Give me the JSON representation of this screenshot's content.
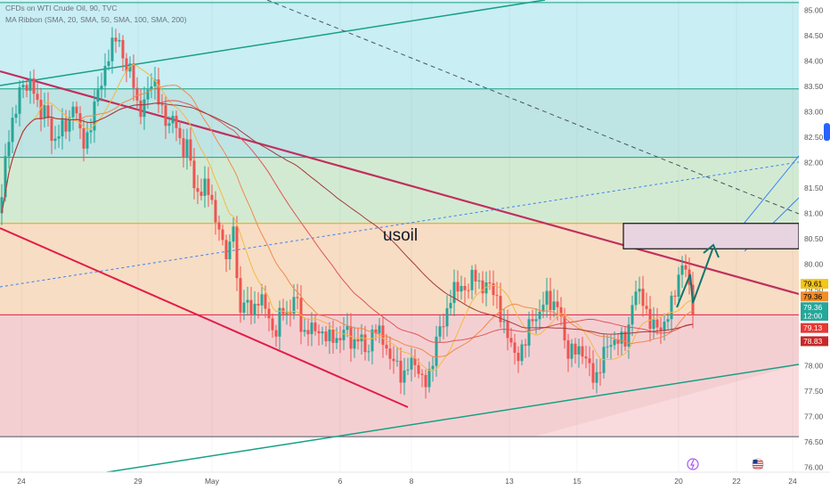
{
  "legend": {
    "symbol_line": "CFDs on WTI Crude Oil, 90, TVC",
    "indicator_line": "MA Ribbon (SMA, 20, SMA, 50, SMA, 100, SMA, 200)"
  },
  "annotation_text": "usoil",
  "colors": {
    "band_cyan": "#c9eef3",
    "band_teal": "#bfe4e4",
    "band_green": "#d3ead2",
    "band_orange": "#f7ddc4",
    "band_red": "#f4cfd2",
    "channel_line": "#16a085",
    "downtrend_line": "#c0305f",
    "resistance_line": "#f59e0b",
    "support_line": "#e11d48",
    "arrow_color": "#0f766e",
    "candle_up": "#26a69a",
    "candle_down": "#ef5350"
  },
  "chart_data": {
    "type": "candlestick",
    "x_ticks": [
      "24",
      "29",
      "May",
      "6",
      "8",
      "13",
      "15",
      "20",
      "22",
      "24"
    ],
    "y_ticks": [
      "85.00",
      "84.50",
      "84.00",
      "83.50",
      "83.00",
      "82.50",
      "82.00",
      "81.50",
      "81.00",
      "80.50",
      "80.00",
      "79.50",
      "79.00",
      "78.50",
      "78.00",
      "77.50",
      "77.00",
      "76.50",
      "76.00"
    ],
    "ylim": [
      75.9,
      85.2
    ],
    "horizontal_levels": [
      85.15,
      83.45,
      82.1,
      80.8,
      79.0,
      76.6
    ],
    "price_badges": [
      {
        "label": "79.61",
        "value": 79.61,
        "bg": "#f5c518",
        "fg": "#000000"
      },
      {
        "label": "79.36",
        "value": 79.36,
        "bg": "#f28c28",
        "fg": "#000000"
      },
      {
        "label": "79.36",
        "value": 79.15,
        "bg": "#26a69a",
        "fg": "#ffffff"
      },
      {
        "label": "12:00",
        "value": 78.98,
        "bg": "#26a69a",
        "fg": "#ffffff"
      },
      {
        "label": "79.13",
        "value": 78.74,
        "bg": "#e53935",
        "fg": "#ffffff"
      },
      {
        "label": "78.83",
        "value": 78.48,
        "bg": "#c62828",
        "fg": "#ffffff"
      }
    ],
    "price_path": [
      [
        0,
        81.0
      ],
      [
        8,
        82.6
      ],
      [
        16,
        83.1
      ],
      [
        24,
        83.6
      ],
      [
        30,
        83.3
      ],
      [
        36,
        83.4
      ],
      [
        44,
        82.8
      ],
      [
        52,
        83.2
      ],
      [
        60,
        82.5
      ],
      [
        68,
        82.9
      ],
      [
        76,
        82.6
      ],
      [
        84,
        83.0
      ],
      [
        92,
        82.2
      ],
      [
        100,
        82.6
      ],
      [
        108,
        83.6
      ],
      [
        116,
        83.8
      ],
      [
        124,
        84.2
      ],
      [
        132,
        84.3
      ],
      [
        140,
        83.7
      ],
      [
        148,
        83.9
      ],
      [
        156,
        83.1
      ],
      [
        164,
        83.5
      ],
      [
        172,
        83.6
      ],
      [
        180,
        82.9
      ],
      [
        188,
        82.5
      ],
      [
        196,
        83.0
      ],
      [
        204,
        82.4
      ],
      [
        212,
        82.6
      ],
      [
        218,
        81.5
      ],
      [
        224,
        81.2
      ],
      [
        232,
        81.4
      ],
      [
        240,
        80.9
      ],
      [
        248,
        80.7
      ],
      [
        256,
        80.3
      ],
      [
        262,
        81.0
      ],
      [
        268,
        79.0
      ],
      [
        276,
        79.1
      ],
      [
        284,
        78.8
      ],
      [
        292,
        79.4
      ],
      [
        300,
        79.3
      ],
      [
        308,
        78.7
      ],
      [
        316,
        79.2
      ],
      [
        324,
        78.7
      ],
      [
        332,
        79.3
      ],
      [
        340,
        78.5
      ],
      [
        348,
        79.0
      ],
      [
        356,
        78.9
      ],
      [
        364,
        78.6
      ],
      [
        372,
        78.4
      ],
      [
        380,
        78.2
      ],
      [
        388,
        78.8
      ],
      [
        396,
        78.5
      ],
      [
        404,
        78.9
      ],
      [
        412,
        78.2
      ],
      [
        420,
        78.6
      ],
      [
        428,
        78.4
      ],
      [
        436,
        78.1
      ],
      [
        444,
        78.3
      ],
      [
        452,
        77.9
      ],
      [
        460,
        78.2
      ],
      [
        468,
        77.8
      ],
      [
        476,
        77.4
      ],
      [
        484,
        77.8
      ],
      [
        492,
        78.9
      ],
      [
        500,
        79.1
      ],
      [
        508,
        79.6
      ],
      [
        516,
        79.4
      ],
      [
        524,
        79.2
      ],
      [
        532,
        79.8
      ],
      [
        540,
        79.6
      ],
      [
        548,
        79.9
      ],
      [
        556,
        79.5
      ],
      [
        564,
        78.7
      ],
      [
        572,
        78.3
      ],
      [
        580,
        78.0
      ],
      [
        588,
        78.5
      ],
      [
        596,
        79.2
      ],
      [
        604,
        79.0
      ],
      [
        612,
        79.3
      ],
      [
        620,
        78.9
      ],
      [
        628,
        79.1
      ],
      [
        636,
        78.3
      ],
      [
        644,
        78.6
      ],
      [
        652,
        78.4
      ],
      [
        660,
        78.0
      ],
      [
        668,
        77.4
      ],
      [
        674,
        77.8
      ],
      [
        680,
        78.4
      ],
      [
        688,
        78.6
      ],
      [
        696,
        78.8
      ],
      [
        704,
        78.5
      ],
      [
        712,
        79.3
      ],
      [
        720,
        79.2
      ],
      [
        728,
        78.8
      ],
      [
        736,
        79.0
      ],
      [
        744,
        78.9
      ],
      [
        752,
        79.2
      ],
      [
        760,
        79.4
      ],
      [
        768,
        79.9
      ],
      [
        774,
        79.4
      ],
      [
        778,
        79.1
      ]
    ]
  }
}
